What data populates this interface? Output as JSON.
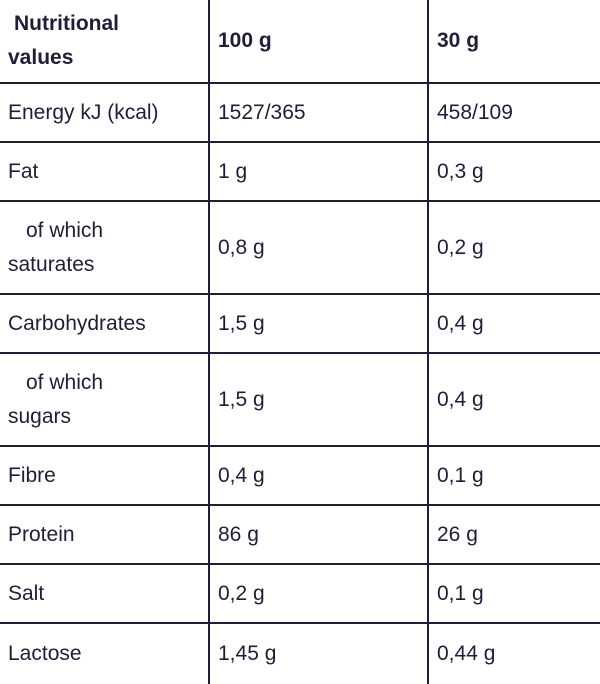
{
  "header": {
    "label_line1": "Nutritional",
    "label_line2": "values",
    "col_100g": "100 g",
    "col_30g": "30 g"
  },
  "rows": [
    {
      "line1": "Energy kJ (kcal)",
      "v100": "1527/365",
      "v30": "458/109"
    },
    {
      "line1": "Fat",
      "v100": "1 g",
      "v30": "0,3 g"
    },
    {
      "line1": "of which",
      "line2": "saturates",
      "v100": "0,8 g",
      "v30": "0,2 g"
    },
    {
      "line1": "Carbohydrates",
      "v100": "1,5 g",
      "v30": "0,4 g"
    },
    {
      "line1": "of which",
      "line2": "sugars",
      "v100": "1,5 g",
      "v30": "0,4 g"
    },
    {
      "line1": "Fibre",
      "v100": "0,4 g",
      "v30": "0,1 g"
    },
    {
      "line1": "Protein",
      "v100": "86 g",
      "v30": "26 g"
    },
    {
      "line1": "Salt",
      "v100": "0,2 g",
      "v30": "0,1 g"
    },
    {
      "line1": "Lactose",
      "v100": "1,45 g",
      "v30": "0,44 g"
    }
  ]
}
